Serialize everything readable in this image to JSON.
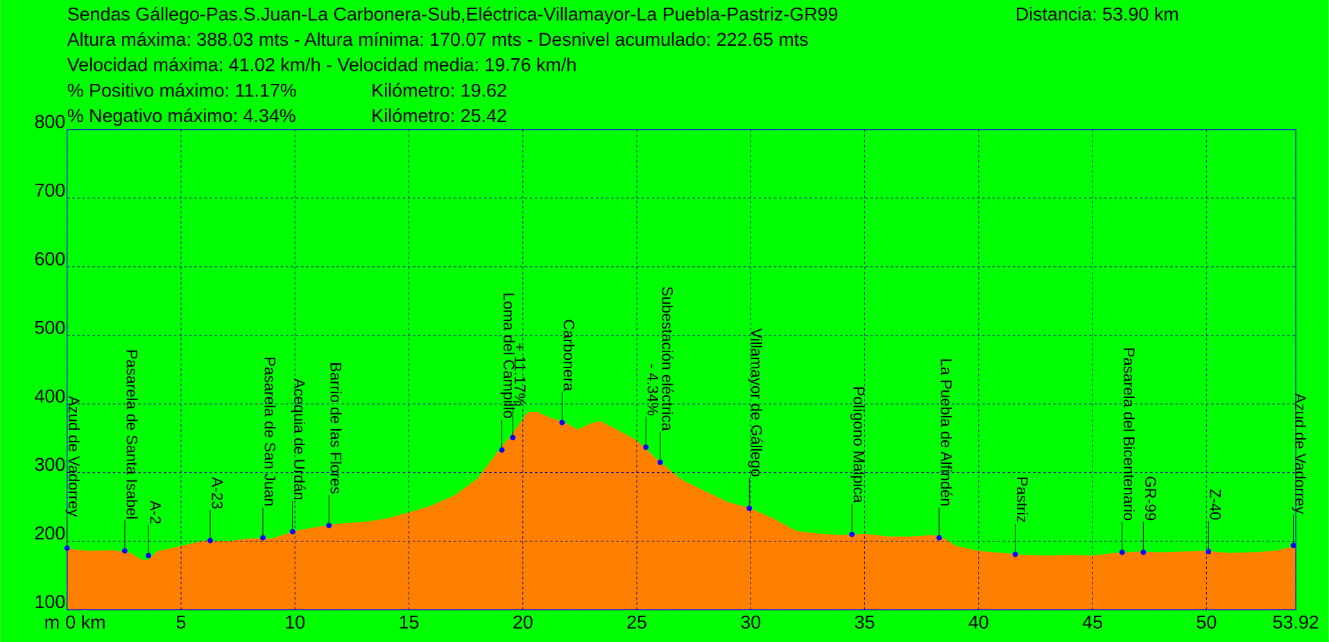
{
  "chart_data": {
    "type": "area",
    "title": "Sendas Gállego-Pas.S.Juan-La Carbonera-Sub,Eléctrica-Villamayor-La Puebla-Pastriz-GR99",
    "distance": "Distancia: 53.90 km",
    "stats": [
      "Altura máxima: 388.03 mts - Altura mínima: 170.07 mts - Desnivel acumulado: 222.65 mts",
      "Velocidad máxima: 41.02 km/h - Velocidad media: 19.76 km/h"
    ],
    "grade_stats": [
      [
        "% Positivo máximo: 11.17%",
        "Kilómetro: 19.62"
      ],
      [
        "% Negativo máximo: 4.34%",
        "Kilómetro: 25.42"
      ]
    ],
    "y_unit": "m",
    "color": "#ff8000",
    "background": "#00ff00",
    "marker_color": "#0000ff",
    "grid": true,
    "x": [
      0,
      1,
      2,
      2.8,
      3.2,
      3.5,
      4,
      5,
      6,
      7,
      8,
      9,
      10,
      11,
      12,
      13,
      14,
      15,
      16,
      17,
      18,
      19,
      19.6,
      20.2,
      20.6,
      21.2,
      21.8,
      22.4,
      23,
      23.4,
      24,
      25,
      26,
      27,
      28,
      29,
      30,
      31,
      32,
      33,
      34,
      35,
      36,
      37,
      38,
      38.5,
      39,
      40,
      41,
      42,
      43,
      44,
      45,
      46,
      47,
      48,
      49,
      50,
      51,
      52,
      53,
      53.92
    ],
    "values": [
      189,
      186,
      187,
      183,
      174,
      172,
      186,
      193,
      201,
      200,
      204,
      204,
      215,
      221,
      226,
      228,
      233,
      242,
      252,
      267,
      291,
      335,
      359,
      388,
      389,
      380,
      374,
      363,
      372,
      375,
      365,
      347,
      316,
      289,
      273,
      257,
      248,
      233,
      215,
      211,
      209,
      211,
      207,
      207,
      209,
      204,
      193,
      186,
      183,
      180,
      179,
      180,
      179,
      183,
      185,
      184,
      185,
      186,
      183,
      184,
      186,
      193
    ],
    "waypoints": [
      {
        "name": "Azud de Vadorrey",
        "x": 0,
        "y": 190
      },
      {
        "name": "Pasarela de Santa Isabel",
        "x": 2.53,
        "y": 186
      },
      {
        "name": "A-2",
        "x": 3.57,
        "y": 179
      },
      {
        "name": "A-23",
        "x": 6.28,
        "y": 201
      },
      {
        "name": "Pasarela de San Juan",
        "x": 8.59,
        "y": 205
      },
      {
        "name": "Acequia de Urdán",
        "x": 9.89,
        "y": 214
      },
      {
        "name": "Barrio de las Flores",
        "x": 11.49,
        "y": 223
      },
      {
        "name": "Loma del Campillo",
        "x": 19.08,
        "y": 333
      },
      {
        "name": "+ 11.17%",
        "x": 19.56,
        "y": 351
      },
      {
        "name": "Carbonera",
        "x": 21.72,
        "y": 373
      },
      {
        "name": "- 4.34%",
        "x": 25.4,
        "y": 337
      },
      {
        "name": "Subestación eléctrica",
        "x": 26.03,
        "y": 315
      },
      {
        "name": "Villamayor de Gállego",
        "x": 29.94,
        "y": 248
      },
      {
        "name": "Polígono Malpica",
        "x": 34.44,
        "y": 210
      },
      {
        "name": "La Puebla de Alfindén",
        "x": 38.27,
        "y": 205
      },
      {
        "name": "Pastriz",
        "x": 41.61,
        "y": 181
      },
      {
        "name": "Pasarela del Bicentenario",
        "x": 46.3,
        "y": 184
      },
      {
        "name": "GR-99",
        "x": 47.23,
        "y": 184
      },
      {
        "name": "Z-40",
        "x": 50.09,
        "y": 185
      },
      {
        "name": "Azud de Vadorrey",
        "x": 53.81,
        "y": 194
      }
    ],
    "xlim": [
      0,
      53.92
    ],
    "xticks": [
      {
        "value": 0,
        "label": "0 km"
      },
      5,
      10,
      15,
      20,
      25,
      30,
      35,
      40,
      45,
      50,
      53.92
    ],
    "ylim": [
      100,
      800
    ],
    "yticks": [
      100,
      200,
      300,
      400,
      500,
      600,
      700,
      800
    ]
  }
}
